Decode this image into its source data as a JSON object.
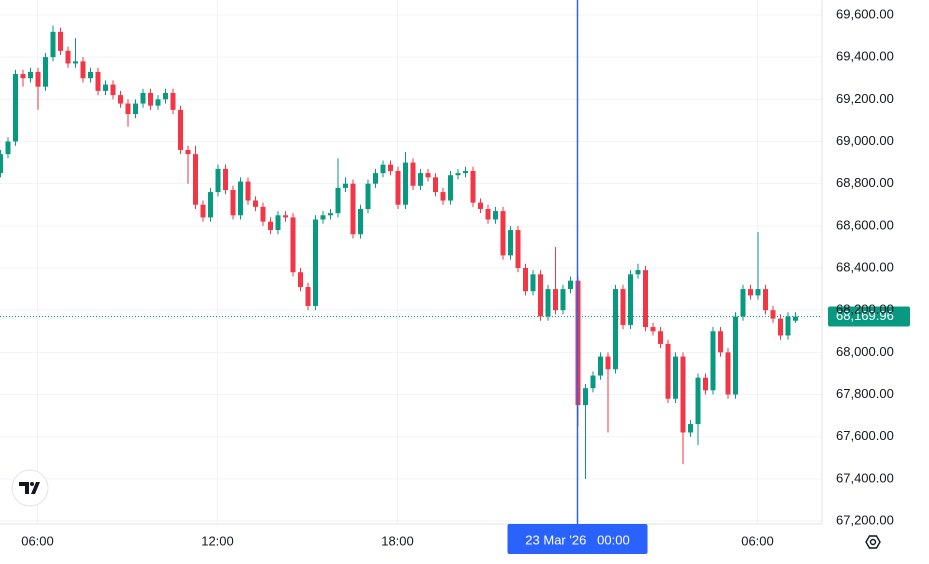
{
  "chart_data": {
    "type": "candlestick",
    "up_color": "#089981",
    "down_color": "#f23645",
    "grid": true,
    "xlim": [
      0,
      109.6
    ],
    "ylim": [
      67186,
      69671
    ],
    "yticks": [
      {
        "value": 67200,
        "label": "67,200.00"
      },
      {
        "value": 67400,
        "label": "67,400.00"
      },
      {
        "value": 67600,
        "label": "67,600.00"
      },
      {
        "value": 67800,
        "label": "67,800.00"
      },
      {
        "value": 68000,
        "label": "68,000.00"
      },
      {
        "value": 68200,
        "label": "68,200.00"
      },
      {
        "value": 68400,
        "label": "68,400.00"
      },
      {
        "value": 68600,
        "label": "68,600.00"
      },
      {
        "value": 68800,
        "label": "68,800.00"
      },
      {
        "value": 69000,
        "label": "69,000.00"
      },
      {
        "value": 69200,
        "label": "69,200.00"
      },
      {
        "value": 69400,
        "label": "69,400.00"
      },
      {
        "value": 69600,
        "label": "69,600.00"
      }
    ],
    "xticks": [
      {
        "value": 5,
        "label": "06:00"
      },
      {
        "value": 29,
        "label": "12:00"
      },
      {
        "value": 53,
        "label": "18:00"
      },
      {
        "value": 101,
        "label": "06:00"
      }
    ],
    "crosshair": {
      "value": 77,
      "label": "23 Mar '26   00:00",
      "color": "#2962ff"
    },
    "current_price": {
      "value": 68169.96,
      "label": "68,169.96"
    },
    "candles": [
      {
        "o": 68850,
        "h": 68960,
        "l": 68830,
        "c": 68940
      },
      {
        "o": 68940,
        "h": 69020,
        "l": 68920,
        "c": 69000
      },
      {
        "o": 69000,
        "h": 69340,
        "l": 68980,
        "c": 69320
      },
      {
        "o": 69320,
        "h": 69340,
        "l": 69260,
        "c": 69300
      },
      {
        "o": 69300,
        "h": 69350,
        "l": 69280,
        "c": 69330
      },
      {
        "o": 69330,
        "h": 69350,
        "l": 69150,
        "c": 69260
      },
      {
        "o": 69260,
        "h": 69420,
        "l": 69240,
        "c": 69400
      },
      {
        "o": 69400,
        "h": 69550,
        "l": 69380,
        "c": 69520
      },
      {
        "o": 69520,
        "h": 69540,
        "l": 69410,
        "c": 69430
      },
      {
        "o": 69430,
        "h": 69450,
        "l": 69350,
        "c": 69370
      },
      {
        "o": 69370,
        "h": 69490,
        "l": 69350,
        "c": 69380
      },
      {
        "o": 69380,
        "h": 69400,
        "l": 69280,
        "c": 69300
      },
      {
        "o": 69300,
        "h": 69350,
        "l": 69280,
        "c": 69330
      },
      {
        "o": 69330,
        "h": 69350,
        "l": 69220,
        "c": 69240
      },
      {
        "o": 69240,
        "h": 69290,
        "l": 69220,
        "c": 69270
      },
      {
        "o": 69270,
        "h": 69290,
        "l": 69200,
        "c": 69220
      },
      {
        "o": 69220,
        "h": 69240,
        "l": 69160,
        "c": 69180
      },
      {
        "o": 69180,
        "h": 69200,
        "l": 69070,
        "c": 69130
      },
      {
        "o": 69130,
        "h": 69200,
        "l": 69110,
        "c": 69180
      },
      {
        "o": 69180,
        "h": 69250,
        "l": 69160,
        "c": 69230
      },
      {
        "o": 69230,
        "h": 69250,
        "l": 69150,
        "c": 69170
      },
      {
        "o": 69170,
        "h": 69220,
        "l": 69150,
        "c": 69200
      },
      {
        "o": 69200,
        "h": 69250,
        "l": 69180,
        "c": 69230
      },
      {
        "o": 69230,
        "h": 69250,
        "l": 69130,
        "c": 69150
      },
      {
        "o": 69150,
        "h": 69170,
        "l": 68940,
        "c": 68960
      },
      {
        "o": 68960,
        "h": 68980,
        "l": 68800,
        "c": 68940
      },
      {
        "o": 68940,
        "h": 68980,
        "l": 68680,
        "c": 68700
      },
      {
        "o": 68700,
        "h": 68720,
        "l": 68620,
        "c": 68640
      },
      {
        "o": 68640,
        "h": 68780,
        "l": 68620,
        "c": 68760
      },
      {
        "o": 68760,
        "h": 68890,
        "l": 68740,
        "c": 68870
      },
      {
        "o": 68870,
        "h": 68890,
        "l": 68750,
        "c": 68770
      },
      {
        "o": 68770,
        "h": 68790,
        "l": 68630,
        "c": 68650
      },
      {
        "o": 68650,
        "h": 68830,
        "l": 68630,
        "c": 68810
      },
      {
        "o": 68810,
        "h": 68830,
        "l": 68700,
        "c": 68720
      },
      {
        "o": 68720,
        "h": 68740,
        "l": 68670,
        "c": 68690
      },
      {
        "o": 68690,
        "h": 68710,
        "l": 68600,
        "c": 68620
      },
      {
        "o": 68620,
        "h": 68640,
        "l": 68560,
        "c": 68580
      },
      {
        "o": 68580,
        "h": 68670,
        "l": 68560,
        "c": 68650
      },
      {
        "o": 68650,
        "h": 68670,
        "l": 68620,
        "c": 68640
      },
      {
        "o": 68640,
        "h": 68660,
        "l": 68360,
        "c": 68380
      },
      {
        "o": 68380,
        "h": 68400,
        "l": 68290,
        "c": 68310
      },
      {
        "o": 68310,
        "h": 68330,
        "l": 68200,
        "c": 68220
      },
      {
        "o": 68220,
        "h": 68650,
        "l": 68200,
        "c": 68630
      },
      {
        "o": 68630,
        "h": 68670,
        "l": 68610,
        "c": 68650
      },
      {
        "o": 68650,
        "h": 68680,
        "l": 68630,
        "c": 68660
      },
      {
        "o": 68660,
        "h": 68920,
        "l": 68640,
        "c": 68780
      },
      {
        "o": 68780,
        "h": 68830,
        "l": 68760,
        "c": 68800
      },
      {
        "o": 68800,
        "h": 68820,
        "l": 68540,
        "c": 68560
      },
      {
        "o": 68560,
        "h": 68700,
        "l": 68540,
        "c": 68680
      },
      {
        "o": 68680,
        "h": 68820,
        "l": 68660,
        "c": 68800
      },
      {
        "o": 68800,
        "h": 68870,
        "l": 68780,
        "c": 68850
      },
      {
        "o": 68850,
        "h": 68910,
        "l": 68830,
        "c": 68890
      },
      {
        "o": 68890,
        "h": 68910,
        "l": 68840,
        "c": 68860
      },
      {
        "o": 68860,
        "h": 68880,
        "l": 68680,
        "c": 68700
      },
      {
        "o": 68700,
        "h": 68950,
        "l": 68680,
        "c": 68900
      },
      {
        "o": 68900,
        "h": 68920,
        "l": 68770,
        "c": 68790
      },
      {
        "o": 68790,
        "h": 68870,
        "l": 68770,
        "c": 68850
      },
      {
        "o": 68850,
        "h": 68870,
        "l": 68810,
        "c": 68830
      },
      {
        "o": 68830,
        "h": 68850,
        "l": 68740,
        "c": 68760
      },
      {
        "o": 68760,
        "h": 68780,
        "l": 68700,
        "c": 68720
      },
      {
        "o": 68720,
        "h": 68860,
        "l": 68700,
        "c": 68840
      },
      {
        "o": 68840,
        "h": 68870,
        "l": 68820,
        "c": 68850
      },
      {
        "o": 68850,
        "h": 68880,
        "l": 68830,
        "c": 68860
      },
      {
        "o": 68860,
        "h": 68880,
        "l": 68690,
        "c": 68710
      },
      {
        "o": 68710,
        "h": 68730,
        "l": 68660,
        "c": 68680
      },
      {
        "o": 68680,
        "h": 68700,
        "l": 68610,
        "c": 68630
      },
      {
        "o": 68630,
        "h": 68690,
        "l": 68610,
        "c": 68670
      },
      {
        "o": 68670,
        "h": 68690,
        "l": 68440,
        "c": 68460
      },
      {
        "o": 68460,
        "h": 68600,
        "l": 68440,
        "c": 68580
      },
      {
        "o": 68580,
        "h": 68600,
        "l": 68380,
        "c": 68400
      },
      {
        "o": 68400,
        "h": 68420,
        "l": 68270,
        "c": 68290
      },
      {
        "o": 68290,
        "h": 68390,
        "l": 68270,
        "c": 68370
      },
      {
        "o": 68370,
        "h": 68390,
        "l": 68150,
        "c": 68170
      },
      {
        "o": 68170,
        "h": 68320,
        "l": 68150,
        "c": 68300
      },
      {
        "o": 68300,
        "h": 68500,
        "l": 68180,
        "c": 68200
      },
      {
        "o": 68200,
        "h": 68320,
        "l": 68180,
        "c": 68300
      },
      {
        "o": 68300,
        "h": 68360,
        "l": 68280,
        "c": 68340
      },
      {
        "o": 68340,
        "h": 68360,
        "l": 67650,
        "c": 67750
      },
      {
        "o": 67750,
        "h": 67850,
        "l": 67400,
        "c": 67830
      },
      {
        "o": 67830,
        "h": 67910,
        "l": 67810,
        "c": 67890
      },
      {
        "o": 67890,
        "h": 68000,
        "l": 67870,
        "c": 67980
      },
      {
        "o": 67980,
        "h": 68000,
        "l": 67620,
        "c": 67920
      },
      {
        "o": 67920,
        "h": 68320,
        "l": 67900,
        "c": 68300
      },
      {
        "o": 68300,
        "h": 68320,
        "l": 68110,
        "c": 68130
      },
      {
        "o": 68130,
        "h": 68390,
        "l": 68110,
        "c": 68370
      },
      {
        "o": 68370,
        "h": 68420,
        "l": 68350,
        "c": 68390
      },
      {
        "o": 68390,
        "h": 68410,
        "l": 68100,
        "c": 68120
      },
      {
        "o": 68120,
        "h": 68140,
        "l": 68080,
        "c": 68100
      },
      {
        "o": 68100,
        "h": 68120,
        "l": 68020,
        "c": 68040
      },
      {
        "o": 68040,
        "h": 68060,
        "l": 67760,
        "c": 67780
      },
      {
        "o": 67780,
        "h": 68000,
        "l": 67760,
        "c": 67980
      },
      {
        "o": 67980,
        "h": 68000,
        "l": 67470,
        "c": 67620
      },
      {
        "o": 67620,
        "h": 67680,
        "l": 67600,
        "c": 67660
      },
      {
        "o": 67660,
        "h": 67900,
        "l": 67560,
        "c": 67880
      },
      {
        "o": 67880,
        "h": 67900,
        "l": 67800,
        "c": 67820
      },
      {
        "o": 67820,
        "h": 68120,
        "l": 67800,
        "c": 68100
      },
      {
        "o": 68100,
        "h": 68120,
        "l": 67980,
        "c": 68000
      },
      {
        "o": 68000,
        "h": 68020,
        "l": 67780,
        "c": 67800
      },
      {
        "o": 67800,
        "h": 68190,
        "l": 67780,
        "c": 68170
      },
      {
        "o": 68170,
        "h": 68320,
        "l": 68150,
        "c": 68300
      },
      {
        "o": 68300,
        "h": 68320,
        "l": 68250,
        "c": 68270
      },
      {
        "o": 68270,
        "h": 68570,
        "l": 68250,
        "c": 68300
      },
      {
        "o": 68300,
        "h": 68320,
        "l": 68180,
        "c": 68200
      },
      {
        "o": 68200,
        "h": 68220,
        "l": 68140,
        "c": 68160
      },
      {
        "o": 68160,
        "h": 68180,
        "l": 68060,
        "c": 68080
      },
      {
        "o": 68080,
        "h": 68190,
        "l": 68060,
        "c": 68170
      },
      {
        "o": 68150,
        "h": 68190,
        "l": 68140,
        "c": 68169.96
      }
    ]
  }
}
